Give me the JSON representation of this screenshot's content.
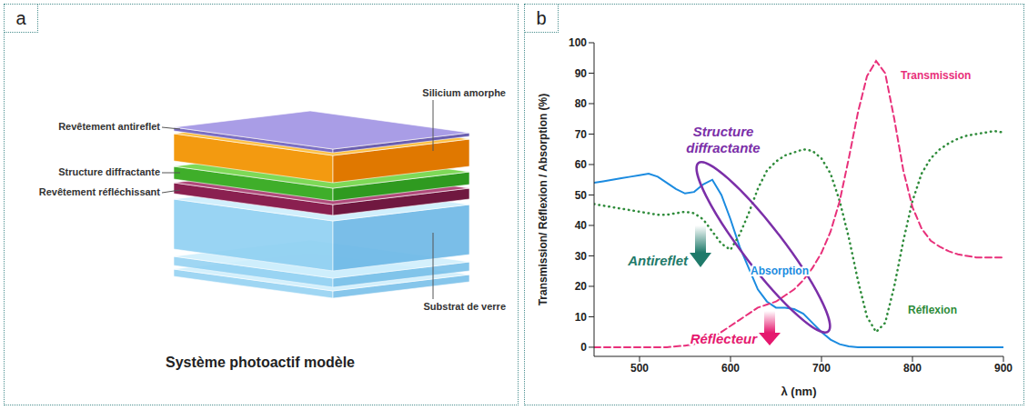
{
  "panel_letters": [
    "a",
    "b"
  ],
  "diagram": {
    "title": "Système photoactif modèle",
    "layers": [
      "Revêtement antireflet",
      "Silicium amorphe",
      "Structure diffractante",
      "Revêtement réfléchissant",
      "Substrat de verre"
    ]
  },
  "chart_data": {
    "type": "line",
    "x_label": "λ (nm)",
    "y_label": "Transmission/ Réflexion / Absorption (%)",
    "x": [
      450,
      460,
      470,
      480,
      490,
      500,
      510,
      520,
      530,
      540,
      550,
      560,
      570,
      580,
      590,
      600,
      610,
      620,
      630,
      640,
      650,
      660,
      670,
      680,
      690,
      700,
      710,
      720,
      730,
      740,
      750,
      760,
      770,
      780,
      790,
      800,
      810,
      820,
      830,
      840,
      850,
      860,
      870,
      880,
      890,
      900
    ],
    "xlim": [
      450,
      900
    ],
    "xticks": [
      500,
      600,
      700,
      800,
      900
    ],
    "ylim": [
      -3,
      100
    ],
    "yticks": [
      0,
      10,
      20,
      30,
      40,
      50,
      60,
      70,
      80,
      90,
      100
    ],
    "grid": false,
    "series": [
      {
        "name": "Absorption",
        "color": "#1b8be0",
        "line_style": "solid",
        "values": [
          54,
          54.5,
          55,
          55.5,
          56,
          56.5,
          57,
          56,
          54,
          52,
          50.5,
          51,
          53.5,
          55,
          50,
          42,
          33,
          26,
          19,
          15,
          13,
          13,
          12.5,
          11,
          8,
          5,
          2.5,
          1,
          0.3,
          0,
          0,
          0,
          0,
          0,
          0,
          0,
          0,
          0,
          0,
          0,
          0,
          0,
          0,
          0,
          0,
          0
        ]
      },
      {
        "name": "Réflexion",
        "color": "#2e8b3a",
        "line_style": "dotted",
        "values": [
          47,
          46.5,
          46,
          45.5,
          45,
          44.5,
          44,
          43.5,
          43.5,
          44,
          44.5,
          44,
          42,
          38,
          34,
          32,
          37,
          44,
          52,
          58,
          61,
          63,
          64,
          65,
          64.5,
          62,
          57,
          48,
          36,
          22,
          10,
          5,
          8,
          20,
          35,
          48,
          57,
          62,
          65,
          67,
          68.5,
          69.5,
          70,
          70.5,
          71,
          70.5
        ]
      },
      {
        "name": "Transmission",
        "color": "#e8307a",
        "line_style": "dashed",
        "values": [
          0,
          0,
          0,
          0,
          0,
          0,
          0,
          0,
          0,
          0.3,
          0.5,
          1,
          2,
          3,
          5,
          7,
          9,
          11,
          13,
          14,
          15,
          17,
          19,
          22,
          26,
          31,
          38,
          48,
          62,
          77,
          89,
          94,
          90,
          75,
          58,
          46,
          39,
          35,
          33,
          31.5,
          30.5,
          30,
          29.5,
          29.5,
          29.5,
          29.5
        ]
      }
    ],
    "annotations": [
      {
        "text": "Structure diffractante",
        "color": "#7b2fa8"
      },
      {
        "text": "Antireflet",
        "color": "#1f7a6a"
      },
      {
        "text": "Réflecteur",
        "color": "#e5186e"
      }
    ]
  }
}
